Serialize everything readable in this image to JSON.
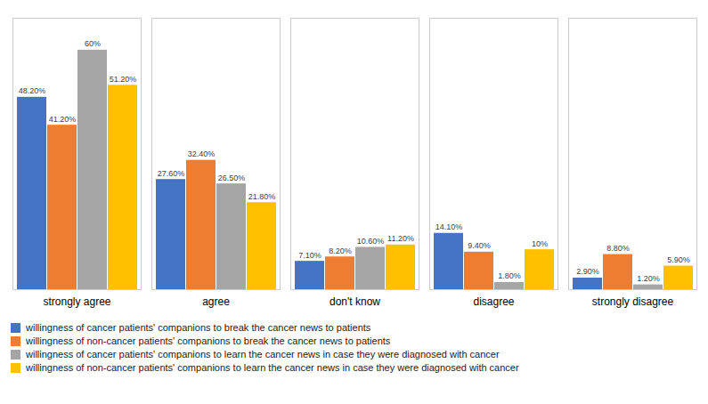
{
  "chart_data": {
    "type": "bar",
    "categories": [
      "strongly agree",
      "agree",
      "don't know",
      "disagree",
      "strongly disagree"
    ],
    "series": [
      {
        "name": "willingness of cancer patients' companions to break the cancer news to patients",
        "color": "#4472C4",
        "values": [
          48.2,
          27.6,
          7.1,
          14.1,
          2.9
        ],
        "value_labels": [
          "48.20%",
          "27.60%",
          "7.10%",
          "14.10%",
          "2.90%"
        ]
      },
      {
        "name": "willingness of non-cancer patients' companions to break the cancer news to patients",
        "color": "#ED7D31",
        "values": [
          41.2,
          32.4,
          8.2,
          9.4,
          8.8
        ],
        "value_labels": [
          "41.20%",
          "32.40%",
          "8.20%",
          "9.40%",
          "8.80%"
        ]
      },
      {
        "name": "willingness of cancer patients' companions to learn the cancer news in case they were diagnosed with cancer",
        "color": "#A5A5A5",
        "values": [
          60.0,
          26.5,
          10.6,
          1.8,
          1.2
        ],
        "value_labels": [
          "60%",
          "26.50%",
          "10.60%",
          "1.80%",
          "1.20%"
        ]
      },
      {
        "name": "willingness of non-cancer patients' companions to learn the cancer news in case they were diagnosed with cancer",
        "color": "#FFC000",
        "values": [
          51.2,
          21.8,
          11.2,
          10.0,
          5.9
        ],
        "value_labels": [
          "51.20%",
          "21.80%",
          "11.20%",
          "10%",
          "5.90%"
        ]
      }
    ],
    "ylim": [
      0,
      68
    ],
    "data_labels": true,
    "tick_labels": "x",
    "grid": false,
    "legend": "bottom"
  }
}
